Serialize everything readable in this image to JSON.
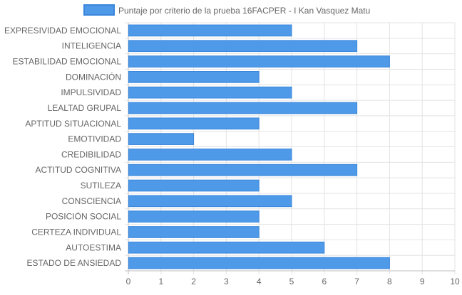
{
  "chart_data": {
    "type": "bar",
    "orientation": "horizontal",
    "categories": [
      "EXPRESIVIDAD EMOCIONAL",
      "INTELIGENCIA",
      "ESTABILIDAD EMOCIONAL",
      "DOMINACIÓN",
      "IMPULSIVIDAD",
      "LEALTAD GRUPAL",
      "APTITUD SITUACIONAL",
      "EMOTIVIDAD",
      "CREDIBILIDAD",
      "ACTITUD COGNITIVA",
      "SUTILEZA",
      "CONSCIENCIA",
      "POSICIÓN SOCIAL",
      "CERTEZA INDIVIDUAL",
      "AUTOESTIMA",
      "ESTADO DE ANSIEDAD"
    ],
    "series": [
      {
        "name": "Puntaje por criterio de la prueba 16FACPER - I Kan Vasquez Matu",
        "values": [
          5,
          7,
          8,
          4,
          5,
          7,
          4,
          2,
          5,
          7,
          4,
          5,
          4,
          4,
          6,
          8
        ]
      }
    ],
    "xlim": [
      0,
      10
    ],
    "xticks": [
      "0",
      "1",
      "2",
      "3",
      "4",
      "5",
      "6",
      "7",
      "8",
      "9",
      "10"
    ],
    "grid": true,
    "legend_position": "top",
    "colors": {
      "bar_fill": "#4e9ae8",
      "bar_border": "#3a86dc",
      "grid": "#e3e3e3",
      "axis": "#bdbdbd"
    }
  }
}
